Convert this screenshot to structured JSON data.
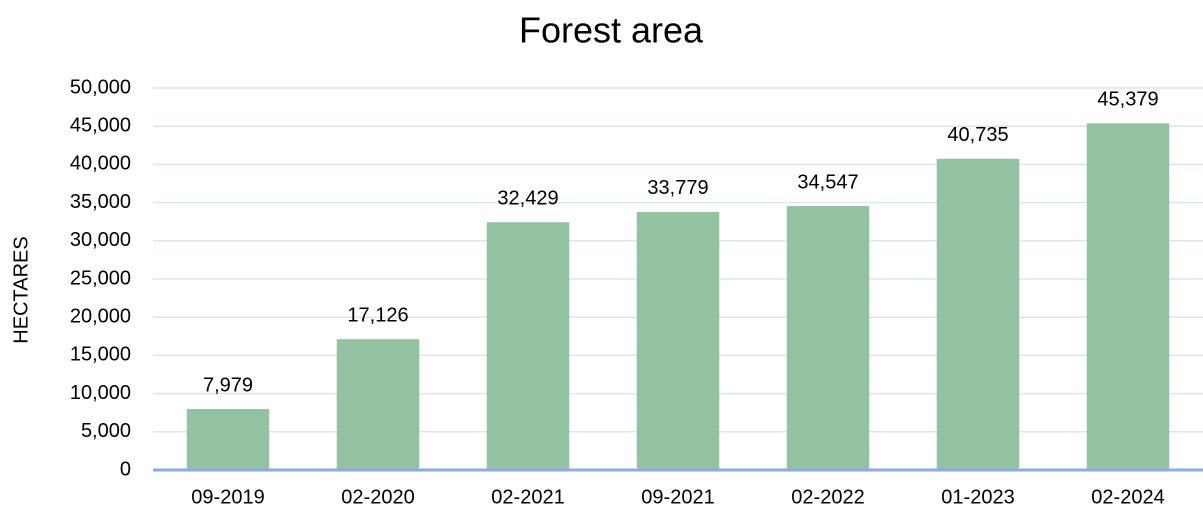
{
  "chart_data": {
    "type": "bar",
    "title": "Forest area",
    "y_label": "HECTARES",
    "categories": [
      "09-2019",
      "02-2020",
      "02-2021",
      "09-2021",
      "02-2022",
      "01-2023",
      "02-2024"
    ],
    "values": [
      7979,
      17126,
      32429,
      33779,
      34547,
      40735,
      45379
    ],
    "value_labels": [
      "7,979",
      "17,126",
      "32,429",
      "33,779",
      "34,547",
      "40,735",
      "45,379"
    ],
    "color": "#93c2a3",
    "ylim": [
      0,
      50000
    ],
    "yticks": [
      0,
      {
        "value": 5000,
        "label": "5,000"
      },
      {
        "value": 10000,
        "label": "10,000"
      },
      {
        "value": 15000,
        "label": "15,000"
      },
      {
        "value": 20000,
        "label": "20,000"
      },
      {
        "value": 25000,
        "label": "25,000"
      },
      {
        "value": 30000,
        "label": "30,000"
      },
      {
        "value": 35000,
        "label": "35,000"
      },
      {
        "value": 40000,
        "label": "40,000"
      },
      {
        "value": 45000,
        "label": "45,000"
      },
      {
        "value": 50000,
        "label": "50,000"
      }
    ],
    "grid": true
  }
}
